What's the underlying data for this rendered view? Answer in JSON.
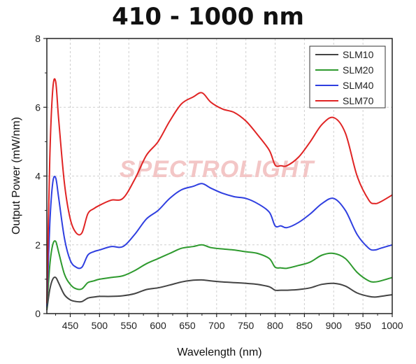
{
  "chart_data": {
    "type": "line",
    "title": "410 - 1000 nm",
    "xlabel": "Wavelength (nm)",
    "ylabel": "Output Power (mW/nm)",
    "xlim": [
      410,
      1000
    ],
    "ylim": [
      0,
      8
    ],
    "xticks": [
      450,
      500,
      550,
      600,
      650,
      700,
      750,
      800,
      850,
      900,
      950,
      1000
    ],
    "yticks": [
      0,
      2,
      4,
      6,
      8
    ],
    "grid": true,
    "legend_position": "top-right",
    "watermark": "SPECTROLIGHT",
    "x": [
      410,
      415,
      420,
      425,
      430,
      440,
      450,
      460,
      470,
      480,
      490,
      500,
      520,
      540,
      560,
      580,
      600,
      620,
      640,
      660,
      675,
      690,
      710,
      730,
      750,
      770,
      790,
      800,
      810,
      820,
      840,
      860,
      880,
      900,
      920,
      940,
      960,
      970,
      980,
      1000
    ],
    "series": [
      {
        "name": "SLM10",
        "color": "#444444",
        "values": [
          0.1,
          0.7,
          1.0,
          1.05,
          0.9,
          0.55,
          0.4,
          0.35,
          0.35,
          0.45,
          0.48,
          0.5,
          0.5,
          0.52,
          0.58,
          0.7,
          0.75,
          0.83,
          0.92,
          0.97,
          0.98,
          0.95,
          0.92,
          0.9,
          0.88,
          0.85,
          0.78,
          0.68,
          0.68,
          0.68,
          0.7,
          0.75,
          0.85,
          0.88,
          0.8,
          0.6,
          0.5,
          0.48,
          0.5,
          0.55
        ]
      },
      {
        "name": "SLM20",
        "color": "#2e9a2e",
        "values": [
          0.15,
          1.4,
          2.0,
          2.1,
          1.8,
          1.15,
          0.85,
          0.72,
          0.72,
          0.9,
          0.95,
          1.0,
          1.05,
          1.1,
          1.25,
          1.45,
          1.6,
          1.75,
          1.9,
          1.95,
          2.0,
          1.92,
          1.88,
          1.85,
          1.8,
          1.75,
          1.6,
          1.35,
          1.33,
          1.32,
          1.4,
          1.5,
          1.7,
          1.75,
          1.6,
          1.2,
          0.95,
          0.92,
          0.95,
          1.05
        ]
      },
      {
        "name": "SLM40",
        "color": "#2f3fe0",
        "values": [
          0.2,
          2.6,
          3.8,
          3.95,
          3.4,
          2.2,
          1.55,
          1.35,
          1.35,
          1.7,
          1.8,
          1.85,
          1.95,
          1.95,
          2.3,
          2.75,
          3.0,
          3.35,
          3.6,
          3.7,
          3.78,
          3.65,
          3.5,
          3.4,
          3.35,
          3.2,
          2.95,
          2.55,
          2.55,
          2.5,
          2.65,
          2.9,
          3.2,
          3.35,
          3.0,
          2.3,
          1.9,
          1.85,
          1.9,
          2.0
        ]
      },
      {
        "name": "SLM70",
        "color": "#e02424",
        "values": [
          0.3,
          4.5,
          6.5,
          6.75,
          5.7,
          3.8,
          2.75,
          2.35,
          2.35,
          2.9,
          3.05,
          3.15,
          3.3,
          3.35,
          3.9,
          4.6,
          5.0,
          5.6,
          6.1,
          6.3,
          6.42,
          6.15,
          5.95,
          5.85,
          5.6,
          5.2,
          4.75,
          4.32,
          4.3,
          4.3,
          4.55,
          5.0,
          5.5,
          5.7,
          5.25,
          4.0,
          3.3,
          3.2,
          3.25,
          3.45
        ]
      }
    ]
  }
}
